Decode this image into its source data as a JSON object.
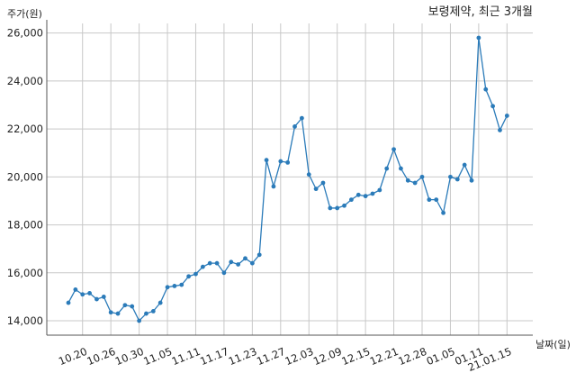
{
  "chart_data": {
    "type": "line",
    "title": "보령제약, 최근 3개월",
    "xlabel": "날짜(일)",
    "ylabel": "주가(원)",
    "ylim": [
      13400,
      26400
    ],
    "yticks": [
      14000,
      16000,
      18000,
      20000,
      22000,
      24000,
      26000
    ],
    "ytick_labels": [
      "14,000",
      "16,000",
      "18,000",
      "20,000",
      "22,000",
      "24,000",
      "26,000"
    ],
    "xtick_labels": [
      "10.20",
      "10.26",
      "10.30",
      "11.05",
      "11.11",
      "11.17",
      "11.23",
      "11.27",
      "12.03",
      "12.09",
      "12.15",
      "12.21",
      "12.28",
      "01.05",
      "01.11",
      "21.01.15"
    ],
    "xtick_index": [
      2,
      6,
      10,
      14,
      18,
      22,
      26,
      30,
      34,
      38,
      42,
      46,
      50,
      54,
      58,
      62
    ],
    "grid": true,
    "series": [
      {
        "color": "#2b7bb9",
        "values": [
          14750,
          15300,
          15100,
          15150,
          14900,
          15000,
          14350,
          14300,
          14650,
          14600,
          14000,
          14300,
          14400,
          14750,
          15400,
          15450,
          15500,
          15850,
          15950,
          16250,
          16400,
          16400,
          16000,
          16450,
          16350,
          16600,
          16400,
          16750,
          20700,
          19600,
          20650,
          20600,
          22100,
          22450,
          20100,
          19500,
          19750,
          18700,
          18700,
          18800,
          19050,
          19250,
          19200,
          19300,
          19450,
          20350,
          21150,
          20350,
          19850,
          19750,
          20000,
          19050,
          19050,
          18500,
          20000,
          19900,
          20500,
          19850,
          25800,
          23650,
          22950,
          21950,
          22550
        ]
      }
    ]
  }
}
